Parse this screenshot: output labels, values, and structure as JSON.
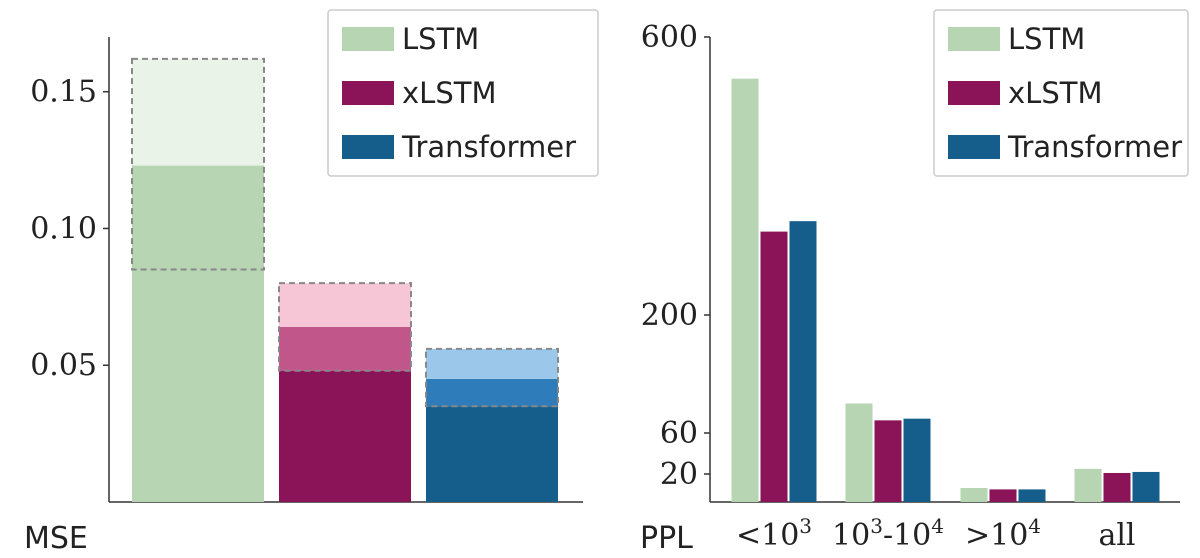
{
  "chart_data": [
    {
      "type": "bar",
      "ylabel": "MSE",
      "ylim": [
        0,
        0.17
      ],
      "yticks": [
        0.05,
        0.1,
        0.15
      ],
      "ytick_labels": [
        "0.05",
        "0.10",
        "0.15"
      ],
      "grid": false,
      "legend_position": "top-right",
      "series": [
        {
          "name": "LSTM",
          "color": "#b7d5b2",
          "light_color": "#eaf3e8",
          "mid_color": "#b7d5b2",
          "value": 0.123,
          "lower": 0.085,
          "upper": 0.162
        },
        {
          "name": "xLSTM",
          "color": "#8a1457",
          "light_color": "#f6c5d6",
          "mid_color": "#c0568a",
          "value": 0.064,
          "lower": 0.048,
          "upper": 0.08
        },
        {
          "name": "Transformer",
          "color": "#155d8b",
          "light_color": "#9bc8ea",
          "mid_color": "#2f7cba",
          "value": 0.045,
          "lower": 0.035,
          "upper": 0.056
        }
      ]
    },
    {
      "type": "bar",
      "ylabel": "PPL",
      "ylim": [
        0,
        600
      ],
      "yticks": [
        20,
        60,
        200,
        600
      ],
      "ytick_labels": [
        "20",
        "60",
        "200",
        "600"
      ],
      "grid": false,
      "legend_position": "top-right",
      "categories": [
        "<10^3",
        "10^3-10^4",
        ">10^4",
        "all"
      ],
      "series": [
        {
          "name": "LSTM",
          "color": "#b7d5b2",
          "values": [
            540,
            95,
            10,
            25
          ]
        },
        {
          "name": "xLSTM",
          "color": "#8a1457",
          "values": [
            320,
            75,
            9,
            21
          ]
        },
        {
          "name": "Transformer",
          "color": "#155d8b",
          "values": [
            335,
            77,
            9,
            22
          ]
        }
      ]
    }
  ]
}
